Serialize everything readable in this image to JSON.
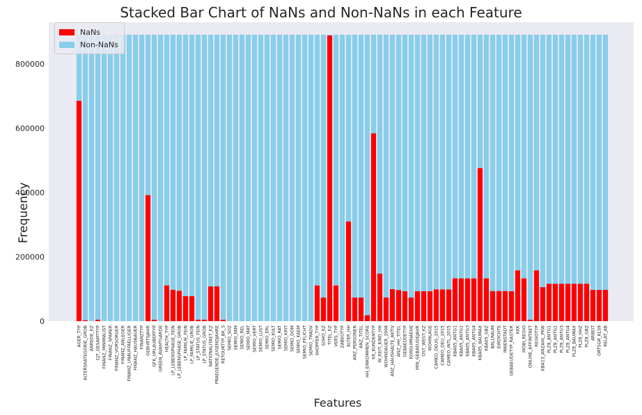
{
  "chart_data": {
    "type": "bar",
    "stacked": true,
    "title": "Stacked Bar Chart of NaNs and Non-NaNs in each Feature",
    "xlabel": "Features",
    "ylabel": "Frequency",
    "ylim": [
      0,
      930000
    ],
    "yticks": [
      0,
      200000,
      400000,
      600000,
      800000
    ],
    "ytick_labels": [
      "0",
      "200000",
      "400000",
      "600000",
      "800000"
    ],
    "grid": false,
    "legend_position": "top-left",
    "colors": {
      "nans": "#ff0000",
      "non_nans": "#87ceeb",
      "plot_bg": "#eaeaf2"
    },
    "total": 891221,
    "categories": [
      "AGER_TYP",
      "ALTERSKATEGORIE_GROB",
      "ANREDE_KZ",
      "CJT_GESAMTTYP",
      "FINANZ_MINIMALIST",
      "FINANZ_SPARER",
      "FINANZ_VORSORGER",
      "FINANZ_ANLEGER",
      "FINANZ_UNAUFFAELLIGER",
      "FINANZ_HAUSBAUER",
      "FINANZTYP",
      "GEBURTSJAHR",
      "GFK_URLAUBERTYP",
      "GREEN_AVANTGARDE",
      "HEALTH_TYP",
      "LP_LEBENSPHASE_FEIN",
      "LP_LEBENSPHASE_GROB",
      "LP_FAMILIE_FEIN",
      "LP_FAMILIE_GROB",
      "LP_STATUS_FEIN",
      "LP_STATUS_GROB",
      "NATIONALITAET_KZ",
      "PRAEGENDE_JUGENDJAHRE",
      "RETOURTYP_BK_S",
      "SEMIO_SOZ",
      "SEMIO_FAM",
      "SEMIO_REL",
      "SEMIO_MAT",
      "SEMIO_VERT",
      "SEMIO_LUST",
      "SEMIO_ERL",
      "SEMIO_KULT",
      "SEMIO_RAT",
      "SEMIO_KRIT",
      "SEMIO_DOM",
      "SEMIO_KAEM",
      "SEMIO_PFLICHT",
      "SEMIO_TRADV",
      "SHOPPER_TYP",
      "SOHO_KZ",
      "TITEL_KZ",
      "VERS_TYP",
      "ZABEOTYP",
      "ALTER_HH",
      "ANZ_PERSONEN",
      "ANZ_TITEL",
      "HH_EINKOMMEN_SCORE",
      "KK_KUNDENTYP",
      "W_KEIT_KIND_HH",
      "WOHNDAUER_2008",
      "ANZ_HAUSHALTE_AKTIV",
      "ANZ_HH_TITEL",
      "GEBAEUDETYP",
      "KONSUMNAEHE",
      "MIN_GEBAEUDEJAHR",
      "OST_WEST_KZ",
      "WOHNLAGE",
      "CAMEO_DEUG_2015",
      "CAMEO_DEU_2015",
      "CAMEO_INTL_2015",
      "KBA05_ANTG1",
      "KBA05_ANTG2",
      "KBA05_ANTG3",
      "KBA05_ANTG4",
      "KBA05_BAUMAX",
      "KBA05_GBZ",
      "BALLRAUM",
      "EWDICHTE",
      "INNENSTADT",
      "GEBAEUDETYP_RASTER",
      "KKK",
      "MOBI_REGIO",
      "ONLINE_AFFINITAET",
      "REGIOTYP",
      "KBA13_ANZAHL_PKW",
      "PLZ8_ANTG1",
      "PLZ8_ANTG2",
      "PLZ8_ANTG3",
      "PLZ8_ANTG4",
      "PLZ8_BAUMAX",
      "PLZ8_HHZ",
      "PLZ8_GBZ",
      "ARBEIT",
      "ORTSGR_KLS9",
      "RELAT_AB"
    ],
    "series": [
      {
        "name": "NaNs",
        "values": [
          685843,
          2881,
          0,
          4854,
          0,
          0,
          0,
          0,
          0,
          0,
          0,
          392318,
          4854,
          0,
          111196,
          97632,
          94572,
          77792,
          77792,
          4854,
          4854,
          108315,
          108164,
          4854,
          0,
          0,
          0,
          0,
          0,
          0,
          0,
          0,
          0,
          0,
          0,
          0,
          0,
          0,
          111196,
          73499,
          889061,
          111196,
          0,
          310267,
          73499,
          73499,
          18348,
          584612,
          147988,
          73499,
          99611,
          97008,
          93148,
          73969,
          93148,
          93148,
          93148,
          98979,
          98979,
          98979,
          133324,
          133324,
          133324,
          133324,
          476524,
          133324,
          93740,
          93740,
          93740,
          93155,
          158064,
          133324,
          4854,
          158064,
          105800,
          116515,
          116515,
          116515,
          116515,
          116515,
          116515,
          116515,
          97375,
          97274,
          97375
        ]
      },
      {
        "name": "Non-NaNs",
        "values": [
          205378,
          888340,
          891221,
          886367,
          891221,
          891221,
          891221,
          891221,
          891221,
          891221,
          891221,
          498903,
          886367,
          891221,
          780025,
          793589,
          796649,
          813429,
          813429,
          886367,
          886367,
          782906,
          783057,
          886367,
          891221,
          891221,
          891221,
          891221,
          891221,
          891221,
          891221,
          891221,
          891221,
          891221,
          891221,
          891221,
          891221,
          891221,
          780025,
          817722,
          2160,
          780025,
          891221,
          580954,
          817722,
          817722,
          872873,
          306609,
          743233,
          817722,
          791610,
          794213,
          798073,
          817252,
          798073,
          798073,
          798073,
          792242,
          792242,
          792242,
          757897,
          757897,
          757897,
          757897,
          414697,
          757897,
          797481,
          797481,
          797481,
          798066,
          733157,
          757897,
          886367,
          733157,
          785421,
          774706,
          774706,
          774706,
          774706,
          774706,
          774706,
          774706,
          793846,
          793947,
          793846
        ]
      }
    ]
  }
}
